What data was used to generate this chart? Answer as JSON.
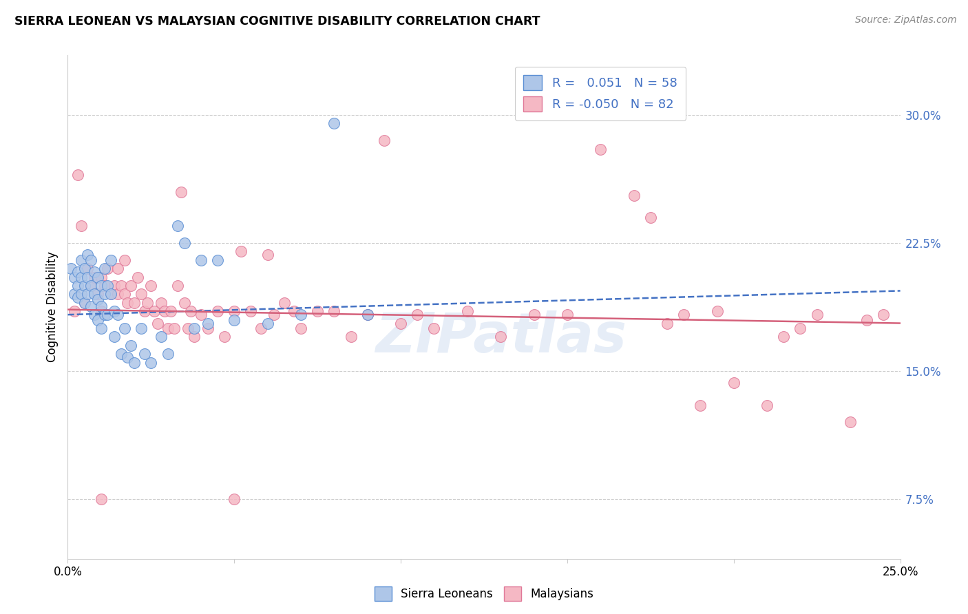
{
  "title": "SIERRA LEONEAN VS MALAYSIAN COGNITIVE DISABILITY CORRELATION CHART",
  "source": "Source: ZipAtlas.com",
  "ylabel": "Cognitive Disability",
  "right_yticks": [
    "30.0%",
    "22.5%",
    "15.0%",
    "7.5%"
  ],
  "right_ytick_vals": [
    0.3,
    0.225,
    0.15,
    0.075
  ],
  "xlim": [
    0.0,
    0.25
  ],
  "ylim": [
    0.04,
    0.335
  ],
  "sl_color": "#aec6e8",
  "sl_edge_color": "#5b8fd4",
  "my_color": "#f5b8c4",
  "my_edge_color": "#e07898",
  "sl_line_color": "#4472c4",
  "my_line_color": "#d4607a",
  "watermark": "ZIPatlas",
  "sl_line": [
    0.0,
    0.25,
    0.183,
    0.197
  ],
  "my_line": [
    0.0,
    0.25,
    0.186,
    0.178
  ],
  "sl_points": [
    [
      0.001,
      0.21
    ],
    [
      0.002,
      0.205
    ],
    [
      0.002,
      0.195
    ],
    [
      0.003,
      0.208
    ],
    [
      0.003,
      0.2
    ],
    [
      0.003,
      0.193
    ],
    [
      0.004,
      0.215
    ],
    [
      0.004,
      0.205
    ],
    [
      0.004,
      0.195
    ],
    [
      0.005,
      0.21
    ],
    [
      0.005,
      0.2
    ],
    [
      0.005,
      0.19
    ],
    [
      0.006,
      0.218
    ],
    [
      0.006,
      0.205
    ],
    [
      0.006,
      0.195
    ],
    [
      0.007,
      0.215
    ],
    [
      0.007,
      0.2
    ],
    [
      0.007,
      0.188
    ],
    [
      0.008,
      0.208
    ],
    [
      0.008,
      0.195
    ],
    [
      0.008,
      0.183
    ],
    [
      0.009,
      0.205
    ],
    [
      0.009,
      0.192
    ],
    [
      0.009,
      0.18
    ],
    [
      0.01,
      0.2
    ],
    [
      0.01,
      0.188
    ],
    [
      0.01,
      0.175
    ],
    [
      0.011,
      0.21
    ],
    [
      0.011,
      0.195
    ],
    [
      0.011,
      0.183
    ],
    [
      0.012,
      0.2
    ],
    [
      0.012,
      0.183
    ],
    [
      0.013,
      0.215
    ],
    [
      0.013,
      0.195
    ],
    [
      0.014,
      0.185
    ],
    [
      0.014,
      0.17
    ],
    [
      0.015,
      0.183
    ],
    [
      0.016,
      0.16
    ],
    [
      0.017,
      0.175
    ],
    [
      0.018,
      0.158
    ],
    [
      0.019,
      0.165
    ],
    [
      0.02,
      0.155
    ],
    [
      0.022,
      0.175
    ],
    [
      0.023,
      0.16
    ],
    [
      0.025,
      0.155
    ],
    [
      0.028,
      0.17
    ],
    [
      0.03,
      0.16
    ],
    [
      0.033,
      0.235
    ],
    [
      0.035,
      0.225
    ],
    [
      0.038,
      0.175
    ],
    [
      0.04,
      0.215
    ],
    [
      0.042,
      0.178
    ],
    [
      0.045,
      0.215
    ],
    [
      0.05,
      0.18
    ],
    [
      0.06,
      0.178
    ],
    [
      0.07,
      0.183
    ],
    [
      0.08,
      0.295
    ],
    [
      0.09,
      0.183
    ]
  ],
  "my_points": [
    [
      0.002,
      0.185
    ],
    [
      0.003,
      0.265
    ],
    [
      0.004,
      0.235
    ],
    [
      0.005,
      0.19
    ],
    [
      0.006,
      0.21
    ],
    [
      0.007,
      0.2
    ],
    [
      0.008,
      0.205
    ],
    [
      0.009,
      0.195
    ],
    [
      0.01,
      0.205
    ],
    [
      0.01,
      0.185
    ],
    [
      0.011,
      0.2
    ],
    [
      0.012,
      0.21
    ],
    [
      0.013,
      0.195
    ],
    [
      0.014,
      0.2
    ],
    [
      0.015,
      0.21
    ],
    [
      0.015,
      0.195
    ],
    [
      0.016,
      0.2
    ],
    [
      0.017,
      0.215
    ],
    [
      0.017,
      0.195
    ],
    [
      0.018,
      0.19
    ],
    [
      0.019,
      0.2
    ],
    [
      0.02,
      0.19
    ],
    [
      0.021,
      0.205
    ],
    [
      0.022,
      0.195
    ],
    [
      0.023,
      0.185
    ],
    [
      0.024,
      0.19
    ],
    [
      0.025,
      0.2
    ],
    [
      0.026,
      0.185
    ],
    [
      0.027,
      0.178
    ],
    [
      0.028,
      0.19
    ],
    [
      0.029,
      0.185
    ],
    [
      0.03,
      0.175
    ],
    [
      0.031,
      0.185
    ],
    [
      0.032,
      0.175
    ],
    [
      0.033,
      0.2
    ],
    [
      0.034,
      0.255
    ],
    [
      0.035,
      0.19
    ],
    [
      0.036,
      0.175
    ],
    [
      0.037,
      0.185
    ],
    [
      0.038,
      0.17
    ],
    [
      0.04,
      0.183
    ],
    [
      0.042,
      0.175
    ],
    [
      0.045,
      0.185
    ],
    [
      0.047,
      0.17
    ],
    [
      0.05,
      0.185
    ],
    [
      0.052,
      0.22
    ],
    [
      0.055,
      0.185
    ],
    [
      0.058,
      0.175
    ],
    [
      0.06,
      0.218
    ],
    [
      0.062,
      0.183
    ],
    [
      0.065,
      0.19
    ],
    [
      0.068,
      0.185
    ],
    [
      0.07,
      0.175
    ],
    [
      0.075,
      0.185
    ],
    [
      0.08,
      0.185
    ],
    [
      0.085,
      0.17
    ],
    [
      0.09,
      0.183
    ],
    [
      0.095,
      0.285
    ],
    [
      0.1,
      0.178
    ],
    [
      0.105,
      0.183
    ],
    [
      0.11,
      0.175
    ],
    [
      0.12,
      0.185
    ],
    [
      0.13,
      0.17
    ],
    [
      0.14,
      0.183
    ],
    [
      0.15,
      0.183
    ],
    [
      0.16,
      0.28
    ],
    [
      0.17,
      0.253
    ],
    [
      0.175,
      0.24
    ],
    [
      0.18,
      0.178
    ],
    [
      0.185,
      0.183
    ],
    [
      0.19,
      0.13
    ],
    [
      0.195,
      0.185
    ],
    [
      0.2,
      0.143
    ],
    [
      0.21,
      0.13
    ],
    [
      0.215,
      0.17
    ],
    [
      0.22,
      0.175
    ],
    [
      0.225,
      0.183
    ],
    [
      0.235,
      0.12
    ],
    [
      0.24,
      0.18
    ],
    [
      0.245,
      0.183
    ],
    [
      0.01,
      0.075
    ],
    [
      0.05,
      0.075
    ]
  ]
}
